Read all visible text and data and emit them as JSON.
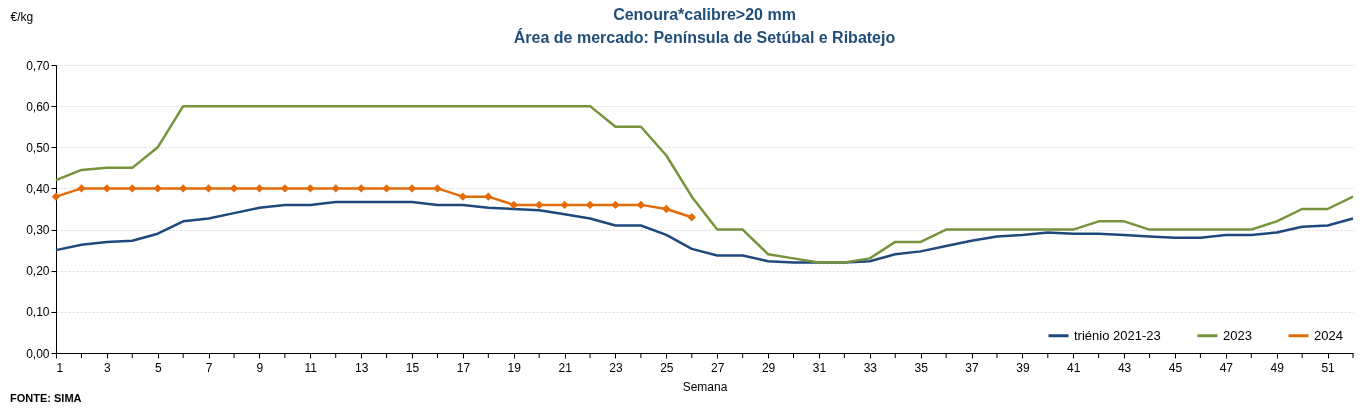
{
  "chart_data": {
    "type": "line",
    "title": "Cenoura*calibre>20 mm",
    "subtitle": "Área de mercado: Península de Setúbal e Ribatejo",
    "ylabel": "€/kg",
    "xlabel": "Semana",
    "annotations": [
      "FONTE: SIMA"
    ],
    "x": [
      1,
      2,
      3,
      4,
      5,
      6,
      7,
      8,
      9,
      10,
      11,
      12,
      13,
      14,
      15,
      16,
      17,
      18,
      19,
      20,
      21,
      22,
      23,
      24,
      25,
      26,
      27,
      28,
      29,
      30,
      31,
      32,
      33,
      34,
      35,
      36,
      37,
      38,
      39,
      40,
      41,
      42,
      43,
      44,
      45,
      46,
      47,
      48,
      49,
      50,
      51,
      52
    ],
    "xlim": [
      1,
      52
    ],
    "xticks": [
      1,
      {
        "value": 2,
        "label": null
      },
      3,
      {
        "value": 4,
        "label": null
      },
      5,
      {
        "value": 6,
        "label": null
      },
      7,
      {
        "value": 8,
        "label": null
      },
      9,
      {
        "value": 10,
        "label": null
      },
      11,
      {
        "value": 12,
        "label": null
      },
      13,
      {
        "value": 14,
        "label": null
      },
      15,
      {
        "value": 16,
        "label": null
      },
      17,
      {
        "value": 18,
        "label": null
      },
      19,
      {
        "value": 20,
        "label": null
      },
      21,
      {
        "value": 22,
        "label": null
      },
      23,
      {
        "value": 24,
        "label": null
      },
      25,
      {
        "value": 26,
        "label": null
      },
      27,
      {
        "value": 28,
        "label": null
      },
      29,
      {
        "value": 30,
        "label": null
      },
      31,
      {
        "value": 32,
        "label": null
      },
      33,
      {
        "value": 34,
        "label": null
      },
      35,
      {
        "value": 36,
        "label": null
      },
      37,
      {
        "value": 38,
        "label": null
      },
      39,
      {
        "value": 40,
        "label": null
      },
      41,
      {
        "value": 42,
        "label": null
      },
      43,
      {
        "value": 44,
        "label": null
      },
      45,
      {
        "value": 46,
        "label": null
      },
      47,
      {
        "value": 48,
        "label": null
      },
      49,
      {
        "value": 50,
        "label": null
      },
      51,
      {
        "value": 52,
        "label": null
      }
    ],
    "ylim": [
      0,
      0.7
    ],
    "yticks": [
      {
        "value": 0,
        "label": "0,00"
      },
      {
        "value": 0.1,
        "label": "0,10"
      },
      {
        "value": 0.2,
        "label": "0,20"
      },
      {
        "value": 0.3,
        "label": "0,30"
      },
      {
        "value": 0.4,
        "label": "0,40"
      },
      {
        "value": 0.5,
        "label": "0,50"
      },
      {
        "value": 0.6,
        "label": "0,60"
      },
      {
        "value": 0.7,
        "label": "0,70"
      }
    ],
    "grid": "y",
    "legend": "bottom right",
    "series": [
      {
        "name": "triénio 2021-23",
        "color": "#1f497d",
        "values": [
          0.25,
          0.263,
          0.27,
          0.273,
          0.29,
          0.32,
          0.327,
          0.34,
          0.353,
          0.36,
          0.36,
          0.367,
          0.367,
          0.367,
          0.367,
          0.36,
          0.36,
          0.353,
          0.35,
          0.347,
          0.337,
          0.327,
          0.31,
          0.31,
          0.287,
          0.253,
          0.237,
          0.237,
          0.223,
          0.22,
          0.22,
          0.22,
          0.223,
          0.24,
          0.247,
          0.26,
          0.273,
          0.283,
          0.287,
          0.293,
          0.29,
          0.29,
          0.287,
          0.283,
          0.28,
          0.28,
          0.287,
          0.287,
          0.293,
          0.307,
          0.31,
          0.327
        ]
      },
      {
        "name": "2023",
        "color": "#77933c",
        "values": [
          0.42,
          0.445,
          0.45,
          0.45,
          0.5,
          0.6,
          0.6,
          0.6,
          0.6,
          0.6,
          0.6,
          0.6,
          0.6,
          0.6,
          0.6,
          0.6,
          0.6,
          0.6,
          0.6,
          0.6,
          0.6,
          0.6,
          0.55,
          0.55,
          0.48,
          0.38,
          0.3,
          0.3,
          0.24,
          0.23,
          0.22,
          0.22,
          0.23,
          0.27,
          0.27,
          0.3,
          0.3,
          0.3,
          0.3,
          0.3,
          0.3,
          0.32,
          0.32,
          0.3,
          0.3,
          0.3,
          0.3,
          0.3,
          0.32,
          0.35,
          0.35,
          0.38
        ]
      },
      {
        "name": "2024",
        "color": "#e36c09",
        "marker": "diamond",
        "values": [
          0.38,
          0.4,
          0.4,
          0.4,
          0.4,
          0.4,
          0.4,
          0.4,
          0.4,
          0.4,
          0.4,
          0.4,
          0.4,
          0.4,
          0.4,
          0.4,
          0.38,
          0.38,
          0.36,
          0.36,
          0.36,
          0.36,
          0.36,
          0.36,
          0.35,
          0.33,
          null,
          null,
          null,
          null,
          null,
          null,
          null,
          null,
          null,
          null,
          null,
          null,
          null,
          null,
          null,
          null,
          null,
          null,
          null,
          null,
          null,
          null,
          null,
          null,
          null,
          null
        ]
      }
    ]
  }
}
